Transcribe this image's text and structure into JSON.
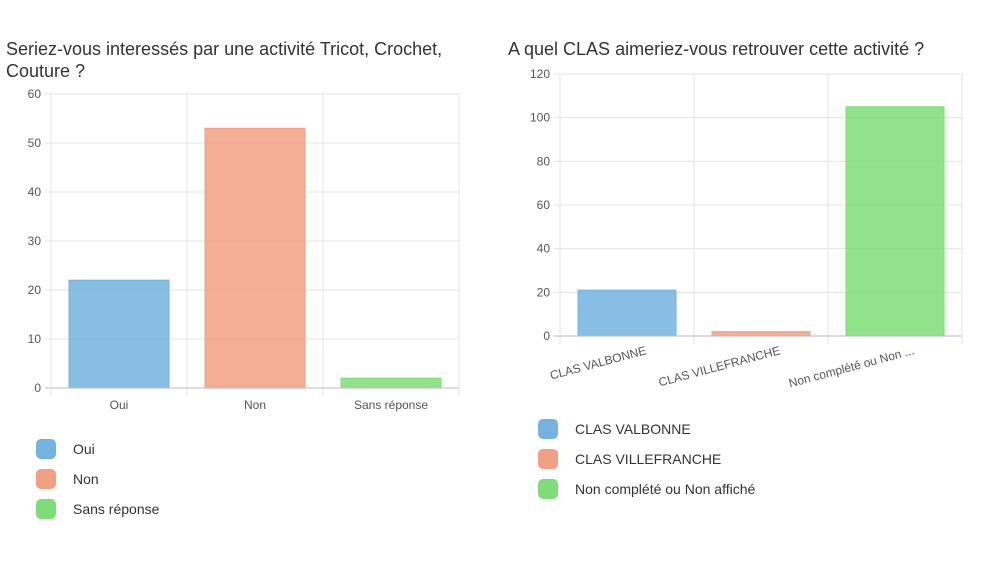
{
  "chart_data": [
    {
      "type": "bar",
      "title": "Seriez-vous interessés par une activité Tricot, Crochet, Couture ?",
      "categories": [
        "Oui",
        "Non",
        "Sans réponse"
      ],
      "values": [
        22,
        53,
        2
      ],
      "colors": [
        "#74b3df",
        "#f2a083",
        "#7edd77"
      ],
      "ylim": [
        0,
        60
      ],
      "yticks": [
        0,
        10,
        20,
        30,
        40,
        50,
        60
      ],
      "xlabel": "",
      "ylabel": "",
      "grid": true,
      "legend": "bottom-left",
      "legend_labels": [
        "Oui",
        "Non",
        "Sans réponse"
      ]
    },
    {
      "type": "bar",
      "title": "A quel CLAS aimeriez-vous retrouver cette activité ?",
      "categories": [
        "CLAS VALBONNE",
        "CLAS VILLEFRANCHE",
        "Non complété ou Non ..."
      ],
      "values": [
        21,
        2,
        105
      ],
      "colors": [
        "#74b3df",
        "#f2a083",
        "#7edd77"
      ],
      "ylim": [
        0,
        120
      ],
      "yticks": [
        0,
        20,
        40,
        60,
        80,
        100,
        120
      ],
      "xlabel": "",
      "ylabel": "",
      "grid": true,
      "x_tick_rotation": "slanted",
      "legend": "bottom-left",
      "legend_labels": [
        "CLAS VALBONNE",
        "CLAS VILLEFRANCHE",
        "Non complété ou Non affiché"
      ]
    }
  ]
}
